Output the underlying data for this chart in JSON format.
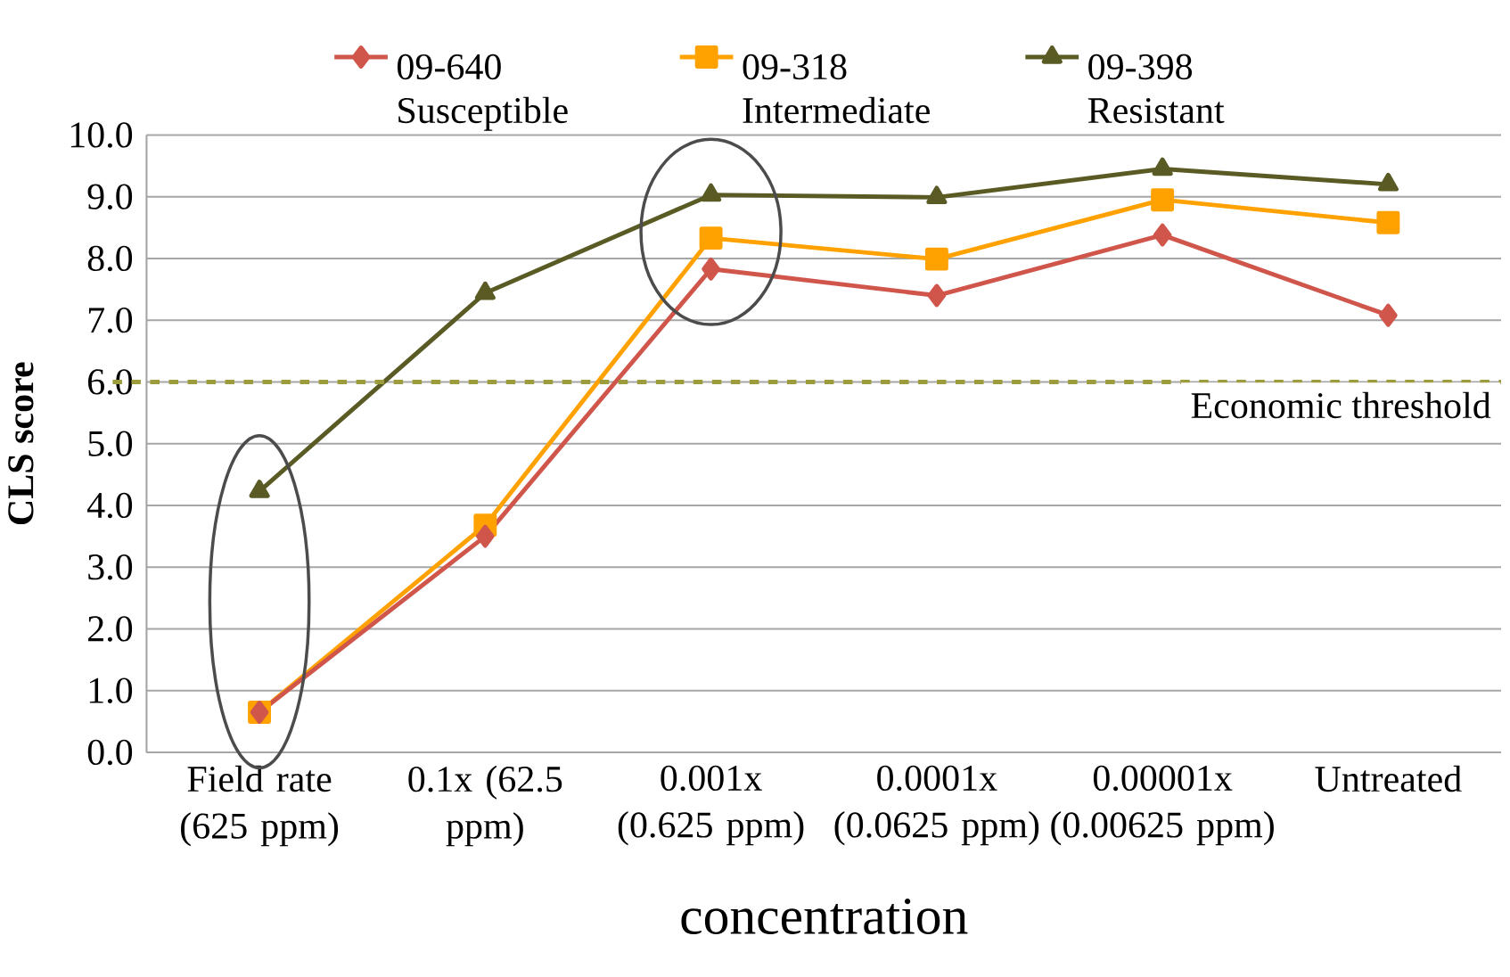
{
  "chart_data": {
    "type": "line",
    "xlabel": "concentration",
    "ylabel": "CLS score",
    "categories": [
      "Field rate (625 ppm)",
      "0.1x (62.5 ppm)",
      "0.001x (0.625 ppm)",
      "0.0001x (0.0625 ppm)",
      "0.00001x (0.00625 ppm)",
      "Untreated"
    ],
    "series": [
      {
        "name": "09-640 Susceptible",
        "color": "#d0554a",
        "marker": "diamond",
        "values": [
          0.65,
          3.5,
          7.83,
          7.4,
          8.38,
          7.08
        ]
      },
      {
        "name": "09-318 Intermediate",
        "color": "#ffa200",
        "marker": "square",
        "values": [
          0.65,
          3.68,
          8.33,
          7.99,
          8.95,
          8.58
        ]
      },
      {
        "name": "09-398 Resistant",
        "color": "#5a5a25",
        "marker": "triangle",
        "values": [
          4.23,
          7.44,
          9.03,
          8.99,
          9.45,
          9.2
        ]
      }
    ],
    "ylim": [
      0,
      10
    ],
    "yticks": [
      {
        "value": 0,
        "label": "0.0"
      },
      {
        "value": 1,
        "label": "1.0"
      },
      {
        "value": 2,
        "label": "2.0"
      },
      {
        "value": 3,
        "label": "3.0"
      },
      {
        "value": 4,
        "label": "4.0"
      },
      {
        "value": 5,
        "label": "5.0"
      },
      {
        "value": 6,
        "label": "6.0"
      },
      {
        "value": 7,
        "label": "7.0"
      },
      {
        "value": 8,
        "label": "8.0"
      },
      {
        "value": 9,
        "label": "9.0"
      },
      {
        "value": 10,
        "label": "10.0"
      }
    ],
    "grid": "y",
    "legend": "top",
    "line_style": "solid",
    "ref_lines": [
      {
        "axis": "y",
        "value": 6,
        "label": "Economic threshold",
        "color": "#9c9c3c",
        "line_style": "dashed"
      }
    ]
  }
}
